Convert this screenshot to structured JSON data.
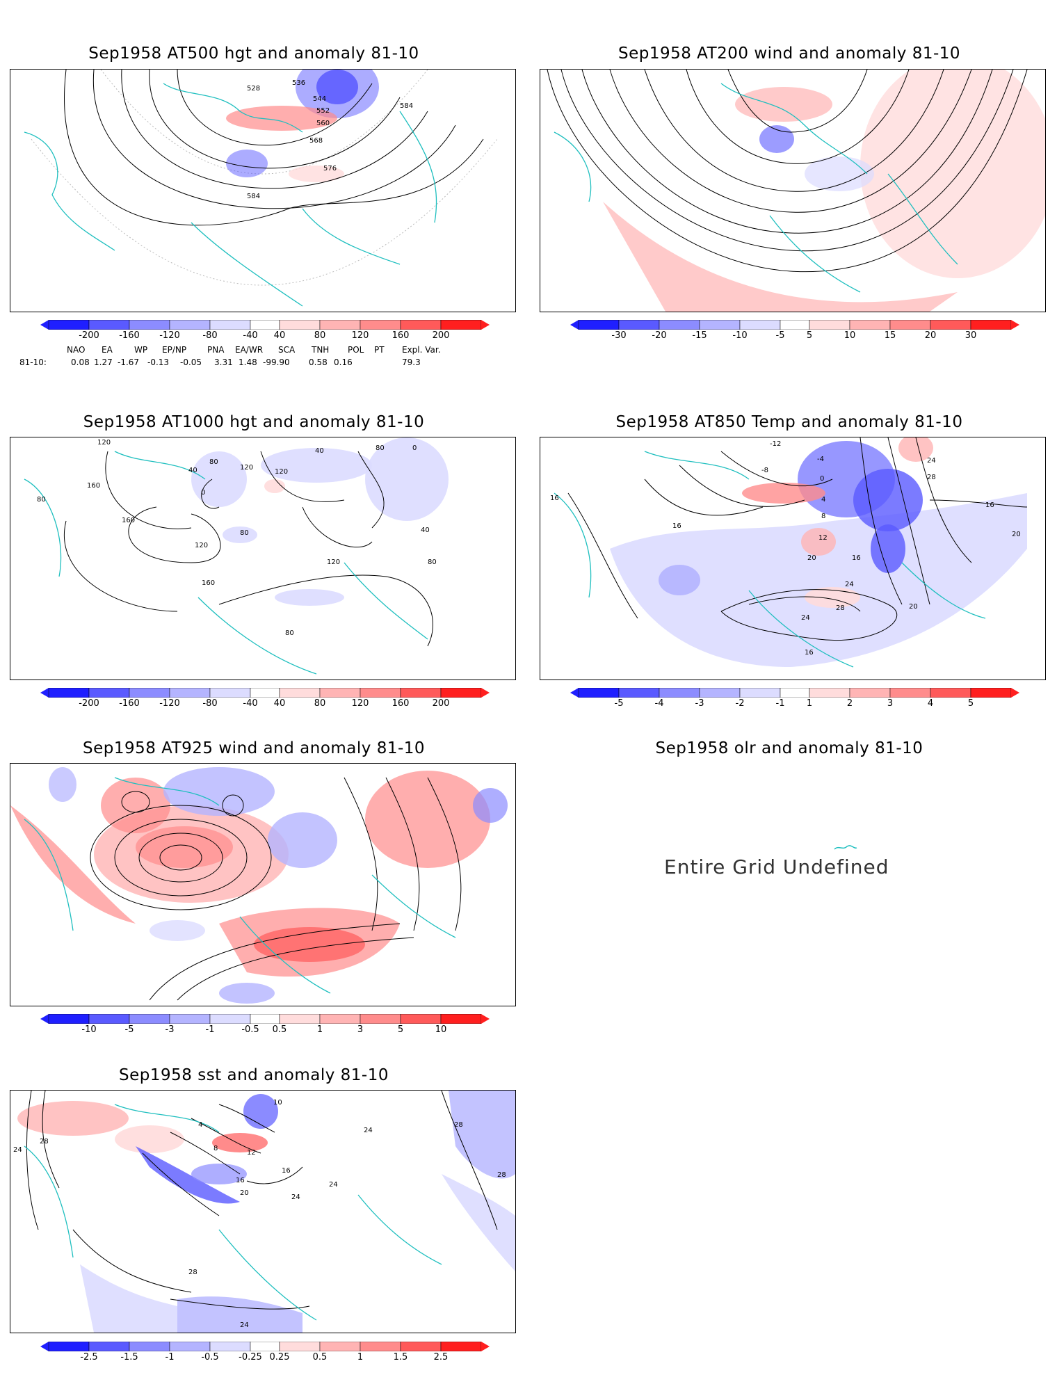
{
  "panels": {
    "p1": {
      "title": "Sep1958 AT500 hgt and anomaly 81-10",
      "labels": [
        "528",
        "536",
        "544",
        "552",
        "560",
        "568",
        "576",
        "584",
        "584"
      ],
      "colorbar": [
        "-200",
        "-160",
        "-120",
        "-80",
        "-40",
        "40",
        "80",
        "120",
        "160",
        "200"
      ]
    },
    "p2": {
      "title": "Sep1958 AT200 wind and anomaly 81-10",
      "colorbar": [
        "-30",
        "-20",
        "-15",
        "-10",
        "-5",
        "5",
        "10",
        "15",
        "20",
        "30"
      ]
    },
    "p3": {
      "title": "Sep1958 AT1000 hgt and anomaly 81-10",
      "labels": [
        "120",
        "160",
        "80",
        "160",
        "40",
        "0",
        "80",
        "120",
        "120",
        "40",
        "80",
        "0",
        "40",
        "80",
        "160",
        "120",
        "80",
        "120",
        "80"
      ],
      "colorbar": [
        "-200",
        "-160",
        "-120",
        "-80",
        "-40",
        "40",
        "80",
        "120",
        "160",
        "200"
      ]
    },
    "p4": {
      "title": "Sep1958 AT850 Temp and anomaly 81-10",
      "labels": [
        "-12",
        "-8",
        "-4",
        "0",
        "4",
        "8",
        "12",
        "16",
        "20",
        "24",
        "28",
        "16",
        "16",
        "16",
        "20",
        "24",
        "28",
        "24",
        "20",
        "16"
      ],
      "colorbar": [
        "-5",
        "-4",
        "-3",
        "-2",
        "-1",
        "1",
        "2",
        "3",
        "4",
        "5"
      ]
    },
    "p5": {
      "title": "Sep1958 AT925 wind and anomaly 81-10",
      "colorbar": [
        "-10",
        "-5",
        "-3",
        "-1",
        "-0.5",
        "0.5",
        "1",
        "3",
        "5",
        "10"
      ]
    },
    "p6": {
      "title": "Sep1958 olr and anomaly 81-10",
      "message": "Entire Grid Undefined"
    },
    "p7": {
      "title": "Sep1958 sst and anomaly 81-10",
      "labels": [
        "24",
        "28",
        "4",
        "8",
        "12",
        "16",
        "20",
        "24",
        "24",
        "28",
        "28",
        "28",
        "24",
        "10",
        "16",
        "24"
      ],
      "colorbar": [
        "-2.5",
        "-1.5",
        "-1",
        "-0.5",
        "-0.25",
        "0.25",
        "0.5",
        "1",
        "1.5",
        "2.5"
      ]
    }
  },
  "indices": {
    "row_label": "81-10:",
    "names": [
      "NAO",
      "EA",
      "WP",
      "EP/NP",
      "PNA",
      "EA/WR",
      "SCA",
      "TNH",
      "POL",
      "PT",
      "Expl. Var."
    ],
    "values": [
      "0.08",
      "1.27",
      "-1.67",
      "-0.13",
      "-0.05",
      "3.31",
      "1.48",
      "-99.90",
      "0.58",
      "0.16",
      "79.3"
    ]
  },
  "colors": {
    "coast": "#1fbfbf",
    "negative": [
      "#1f1fff",
      "#5a5aff",
      "#8c8cff",
      "#b4b4ff",
      "#dcdcff"
    ],
    "positive": [
      "#ffdcdc",
      "#ffb4b4",
      "#ff8c8c",
      "#ff5a5a",
      "#ff1f1f"
    ]
  }
}
